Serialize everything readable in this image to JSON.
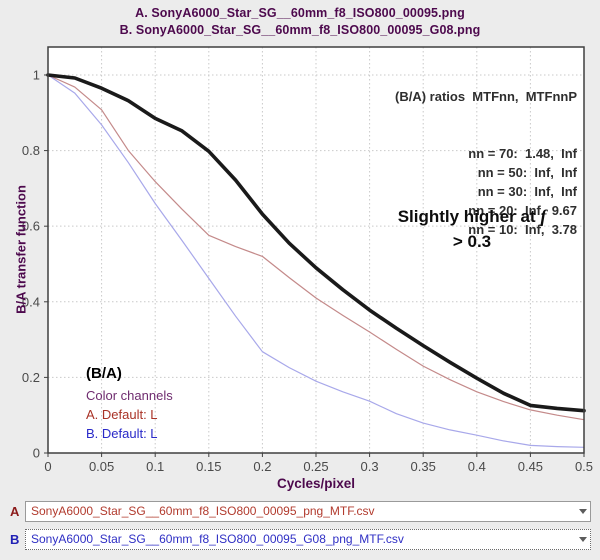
{
  "header": {
    "title_a": "A.  SonyA6000_Star_SG__60mm_f8_ISO800_00095.png",
    "title_b": "B.  SonyA6000_Star_SG__60mm_f8_ISO800_00095_G08.png"
  },
  "chart_data": {
    "type": "line",
    "title": "",
    "xlabel": "Cycles/pixel",
    "ylabel": "B/A transfer function",
    "xlim": [
      0,
      0.5
    ],
    "ylim": [
      0,
      1.074
    ],
    "grid": true,
    "x_ticks": [
      0,
      0.05,
      0.1,
      0.15,
      0.2,
      0.25,
      0.3,
      0.35,
      0.4,
      0.45,
      0.5
    ],
    "x_tick_labels": [
      "0",
      "0.05",
      "0.1",
      "0.15",
      "0.2",
      "0.25",
      "0.3",
      "0.35",
      "0.4",
      "0.45",
      "0.5"
    ],
    "y_ticks": [
      0,
      0.2,
      0.4,
      0.6,
      0.8,
      1
    ],
    "y_tick_labels": [
      "0",
      "0.2",
      "0.4",
      "0.6",
      "0.8",
      "1"
    ],
    "x": [
      0,
      0.025,
      0.05,
      0.075,
      0.1,
      0.125,
      0.15,
      0.175,
      0.2,
      0.225,
      0.25,
      0.275,
      0.3,
      0.325,
      0.35,
      0.375,
      0.4,
      0.425,
      0.45,
      0.475,
      0.5
    ],
    "series": [
      {
        "name": "B/A transfer function (bold)",
        "color": "#1a1a1a",
        "width": 3.6,
        "values": [
          1.0,
          0.992,
          0.965,
          0.932,
          0.885,
          0.852,
          0.798,
          0.722,
          0.632,
          0.555,
          0.49,
          0.432,
          0.378,
          0.33,
          0.284,
          0.24,
          0.198,
          0.158,
          0.126,
          0.118,
          0.112
        ]
      },
      {
        "name": "A: MTF (Default: L)",
        "color": "#c48a8a",
        "width": 1.2,
        "values": [
          1.0,
          0.968,
          0.908,
          0.8,
          0.718,
          0.645,
          0.576,
          0.546,
          0.52,
          0.464,
          0.41,
          0.364,
          0.32,
          0.274,
          0.23,
          0.194,
          0.162,
          0.136,
          0.114,
          0.1,
          0.088
        ]
      },
      {
        "name": "B: MTF (Default: L)",
        "color": "#a8a8ea",
        "width": 1.2,
        "values": [
          1.0,
          0.952,
          0.868,
          0.768,
          0.66,
          0.562,
          0.462,
          0.362,
          0.268,
          0.226,
          0.19,
          0.162,
          0.137,
          0.104,
          0.079,
          0.061,
          0.047,
          0.032,
          0.02,
          0.017,
          0.015
        ]
      }
    ],
    "legend_position": "bottom-left"
  },
  "ratios": {
    "header": "(B/A) ratios  MTFnn,  MTFnnP",
    "lines": [
      "nn = 70:  1.48,  Inf",
      "nn = 50:  Inf,  Inf",
      "nn = 30:  Inf,  Inf",
      "nn = 20:  Inf,  9.67",
      "nn = 10:  Inf,  3.78"
    ]
  },
  "annotation": {
    "line1_text": "Slightly higher at ",
    "line1_italic": "f",
    "line2": "> 0.3"
  },
  "legend": {
    "title": "(B/A)",
    "subtitle": "Color channels",
    "channel_a": "A.  Default: L",
    "channel_b": "B.  Default: L"
  },
  "selectors": {
    "a_label": "A",
    "a_value": "SonyA6000_Star_SG__60mm_f8_ISO800_00095_png_MTF.csv",
    "b_label": "B",
    "b_value": "SonyA6000_Star_SG__60mm_f8_ISO800_00095_G08_png_MTF.csv"
  },
  "colors": {
    "title_purple": "#4d094d",
    "curve_black": "#1a1a1a",
    "curve_a_red": "#c48a8a",
    "curve_b_blue": "#a8a8ea",
    "background": "#ececec"
  }
}
